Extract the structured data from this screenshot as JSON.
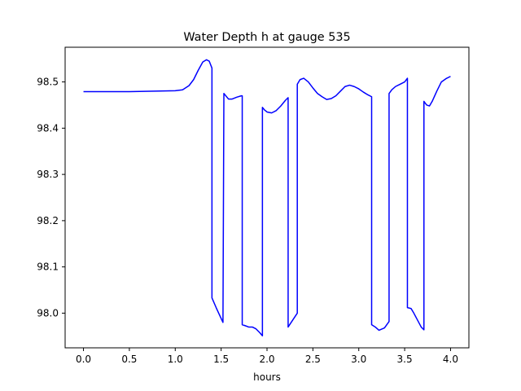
{
  "chart_data": {
    "type": "line",
    "title": "Water Depth h at gauge 535",
    "xlabel": "hours",
    "ylabel": "",
    "xlim": [
      -0.2,
      4.2
    ],
    "ylim": [
      97.925,
      98.575
    ],
    "xticks": [
      0.0,
      0.5,
      1.0,
      1.5,
      2.0,
      2.5,
      3.0,
      3.5,
      4.0
    ],
    "xtick_labels": [
      "0.0",
      "0.5",
      "1.0",
      "1.5",
      "2.0",
      "2.5",
      "3.0",
      "3.5",
      "4.0"
    ],
    "yticks": [
      98.0,
      98.1,
      98.2,
      98.3,
      98.4,
      98.5
    ],
    "ytick_labels": [
      "98.0",
      "98.1",
      "98.2",
      "98.3",
      "98.4",
      "98.5"
    ],
    "grid": false,
    "series": [
      {
        "color": "#0000ff",
        "x": [
          0.0,
          0.5,
          1.0,
          1.08,
          1.15,
          1.2,
          1.25,
          1.3,
          1.34,
          1.37,
          1.4,
          1.4,
          1.45,
          1.52,
          1.53,
          1.58,
          1.62,
          1.67,
          1.72,
          1.73,
          1.73,
          1.76,
          1.8,
          1.84,
          1.88,
          1.92,
          1.95,
          1.95,
          1.97,
          2.0,
          2.05,
          2.1,
          2.15,
          2.2,
          2.23,
          2.23,
          2.28,
          2.33,
          2.33,
          2.36,
          2.4,
          2.45,
          2.5,
          2.55,
          2.6,
          2.65,
          2.7,
          2.75,
          2.8,
          2.85,
          2.9,
          2.95,
          3.0,
          3.05,
          3.1,
          3.14,
          3.14,
          3.18,
          3.22,
          3.28,
          3.33,
          3.33,
          3.36,
          3.4,
          3.45,
          3.5,
          3.53,
          3.53,
          3.57,
          3.6,
          3.64,
          3.68,
          3.71,
          3.71,
          3.74,
          3.77,
          3.8,
          3.85,
          3.9,
          3.95,
          4.0
        ],
        "y": [
          98.479,
          98.479,
          98.481,
          98.483,
          98.492,
          98.505,
          98.525,
          98.543,
          98.548,
          98.545,
          98.53,
          98.033,
          98.01,
          97.98,
          98.475,
          98.463,
          98.463,
          98.467,
          98.47,
          98.47,
          97.975,
          97.973,
          97.97,
          97.97,
          97.966,
          97.958,
          97.951,
          98.445,
          98.44,
          98.435,
          98.433,
          98.438,
          98.448,
          98.46,
          98.466,
          97.97,
          97.985,
          98.0,
          98.495,
          98.505,
          98.508,
          98.5,
          98.487,
          98.475,
          98.468,
          98.462,
          98.464,
          98.47,
          98.48,
          98.49,
          98.493,
          98.49,
          98.485,
          98.478,
          98.472,
          98.468,
          97.975,
          97.97,
          97.963,
          97.968,
          97.982,
          98.475,
          98.483,
          98.49,
          98.495,
          98.5,
          98.508,
          98.012,
          98.01,
          98.0,
          97.985,
          97.97,
          97.964,
          98.458,
          98.45,
          98.448,
          98.458,
          98.48,
          98.5,
          98.507,
          98.512
        ]
      }
    ]
  }
}
